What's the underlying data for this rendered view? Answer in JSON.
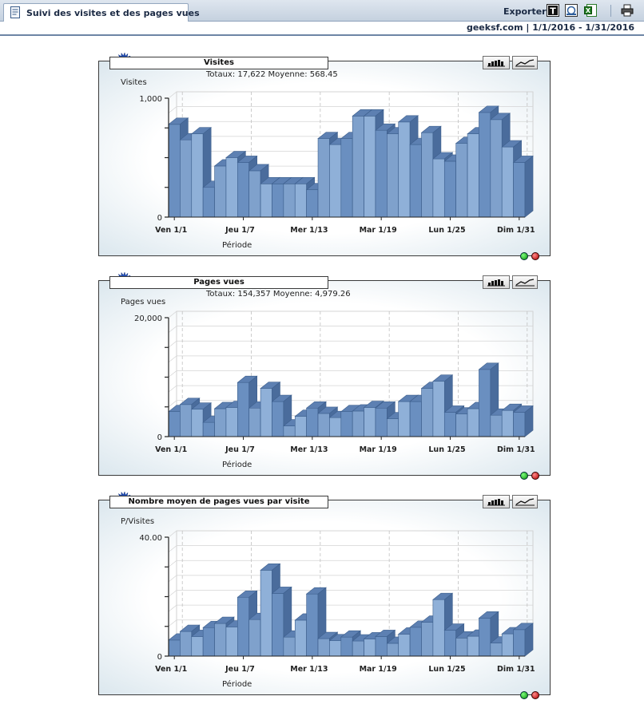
{
  "header": {
    "tab_title": "Suivi des visites et des pages vues",
    "export_label": "Exporter",
    "site_and_range": "geeksf.com  |  1/1/2016 - 1/31/2016",
    "icons": [
      "text-export-icon",
      "web-export-icon",
      "excel-export-icon",
      "print-icon"
    ]
  },
  "charts": [
    {
      "title": "Visites",
      "totals": "Totaux: 17,622   Moyenne: 568.45",
      "ylabel": "Visites",
      "xlabel": "Période",
      "ymax_label": "1,000",
      "ymin_label": "0"
    },
    {
      "title": "Pages vues",
      "totals": "Totaux: 154,357   Moyenne: 4,979.26",
      "ylabel": "Pages vues",
      "xlabel": "Période",
      "ymax_label": "20,000",
      "ymin_label": "0"
    },
    {
      "title": "Nombre moyen de pages vues par visite",
      "totals": "",
      "ylabel": "P/Visites",
      "xlabel": "Période",
      "ymax_label": "40.00",
      "ymin_label": "0"
    }
  ],
  "chart_data": [
    {
      "type": "bar",
      "title": "Visites",
      "ylabel": "Visites",
      "xlabel": "Période",
      "ylim": [
        0,
        1000
      ],
      "x_tick_labels": [
        "Ven 1/1",
        "Jeu 1/7",
        "Mer 1/13",
        "Mar 1/19",
        "Lun 1/25",
        "Dim 1/31"
      ],
      "categories": [
        "1",
        "2",
        "3",
        "4",
        "5",
        "6",
        "7",
        "8",
        "9",
        "10",
        "11",
        "12",
        "13",
        "14",
        "15",
        "16",
        "17",
        "18",
        "19",
        "20",
        "21",
        "22",
        "23",
        "24",
        "25",
        "26",
        "27",
        "28",
        "29",
        "30",
        "31"
      ],
      "values": [
        780,
        650,
        700,
        250,
        430,
        500,
        460,
        390,
        280,
        280,
        280,
        280,
        230,
        660,
        610,
        660,
        850,
        850,
        730,
        700,
        800,
        610,
        710,
        490,
        470,
        620,
        700,
        880,
        820,
        590,
        460
      ]
    },
    {
      "type": "bar",
      "title": "Pages vues",
      "ylabel": "Pages vues",
      "xlabel": "Période",
      "ylim": [
        0,
        20000
      ],
      "x_tick_labels": [
        "Ven 1/1",
        "Jeu 1/7",
        "Mer 1/13",
        "Mar 1/19",
        "Lun 1/25",
        "Dim 1/31"
      ],
      "categories": [
        "1",
        "2",
        "3",
        "4",
        "5",
        "6",
        "7",
        "8",
        "9",
        "10",
        "11",
        "12",
        "13",
        "14",
        "15",
        "16",
        "17",
        "18",
        "19",
        "20",
        "21",
        "22",
        "23",
        "24",
        "25",
        "26",
        "27",
        "28",
        "29",
        "30",
        "31"
      ],
      "values": [
        4200,
        5400,
        4600,
        2400,
        4700,
        4900,
        9100,
        4800,
        8100,
        5900,
        1800,
        3400,
        4800,
        3900,
        3200,
        4200,
        4300,
        4900,
        4800,
        3000,
        5900,
        5900,
        8100,
        9300,
        4100,
        3800,
        4700,
        11300,
        3600,
        4400,
        4100
      ]
    },
    {
      "type": "bar",
      "title": "Nombre moyen de pages vues par visite",
      "ylabel": "P/Visites",
      "xlabel": "Période",
      "ylim": [
        0,
        40
      ],
      "x_tick_labels": [
        "Ven 1/1",
        "Jeu 1/7",
        "Mer 1/13",
        "Mar 1/19",
        "Lun 1/25",
        "Dim 1/31"
      ],
      "categories": [
        "1",
        "2",
        "3",
        "4",
        "5",
        "6",
        "7",
        "8",
        "9",
        "10",
        "11",
        "12",
        "13",
        "14",
        "15",
        "16",
        "17",
        "18",
        "19",
        "20",
        "21",
        "22",
        "23",
        "24",
        "25",
        "26",
        "27",
        "28",
        "29",
        "30",
        "31"
      ],
      "values": [
        5.4,
        8.3,
        6.6,
        9.6,
        11.0,
        9.8,
        19.8,
        12.3,
        28.9,
        21.1,
        6.4,
        12.1,
        20.9,
        5.9,
        5.2,
        6.4,
        5.1,
        5.8,
        6.6,
        4.3,
        7.4,
        9.7,
        11.4,
        19.0,
        8.7,
        6.1,
        6.7,
        12.8,
        4.4,
        7.5,
        8.9
      ]
    }
  ]
}
